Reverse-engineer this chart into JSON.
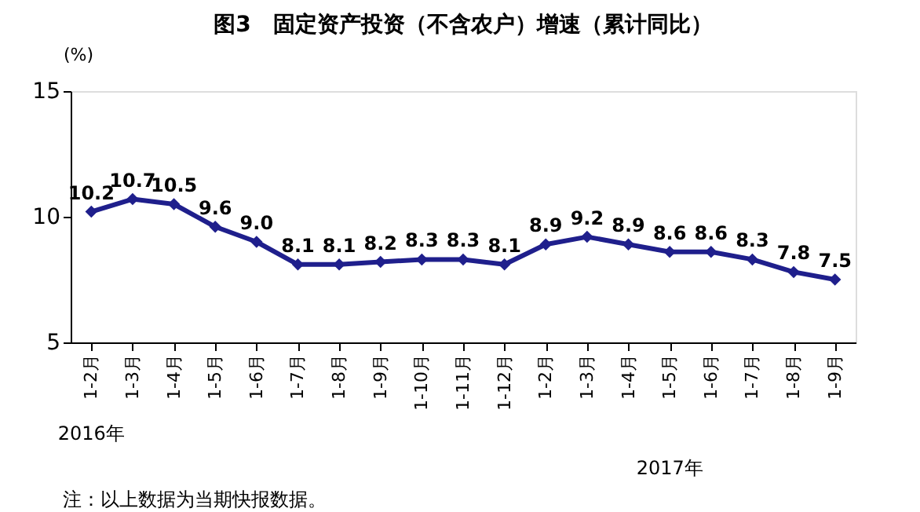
{
  "chart_data": {
    "type": "line",
    "title": "图3　固定资产投资（不含农户）增速（累计同比）",
    "ylabel": "(%)",
    "categories": [
      "1-2月",
      "1-3月",
      "1-4月",
      "1-5月",
      "1-6月",
      "1-7月",
      "1-8月",
      "1-9月",
      "1-10月",
      "1-11月",
      "1-12月",
      "1-2月",
      "1-3月",
      "1-4月",
      "1-5月",
      "1-6月",
      "1-7月",
      "1-8月",
      "1-9月"
    ],
    "series": [
      {
        "color": "#1f1f8c",
        "values": [
          10.2,
          10.7,
          10.5,
          9.6,
          9.0,
          8.1,
          8.1,
          8.2,
          8.3,
          8.3,
          8.1,
          8.9,
          9.2,
          8.9,
          8.6,
          8.6,
          8.3,
          7.8,
          7.5
        ],
        "value_labels": [
          "10.2",
          "10.7",
          "10.5",
          "9.6",
          "9.0",
          "8.1",
          "8.1",
          "8.2",
          "8.3",
          "8.3",
          "8.1",
          "8.9",
          "9.2",
          "8.9",
          "8.6",
          "8.6",
          "8.3",
          "7.8",
          "7.5"
        ]
      }
    ],
    "ylim": [
      5,
      15
    ],
    "yticks": [
      5,
      10,
      15
    ],
    "grid": false,
    "marker": "diamond",
    "line_style": "solid",
    "annotations": [
      "2016年",
      "2017年",
      "注：以上数据为当期快报数据。"
    ]
  }
}
